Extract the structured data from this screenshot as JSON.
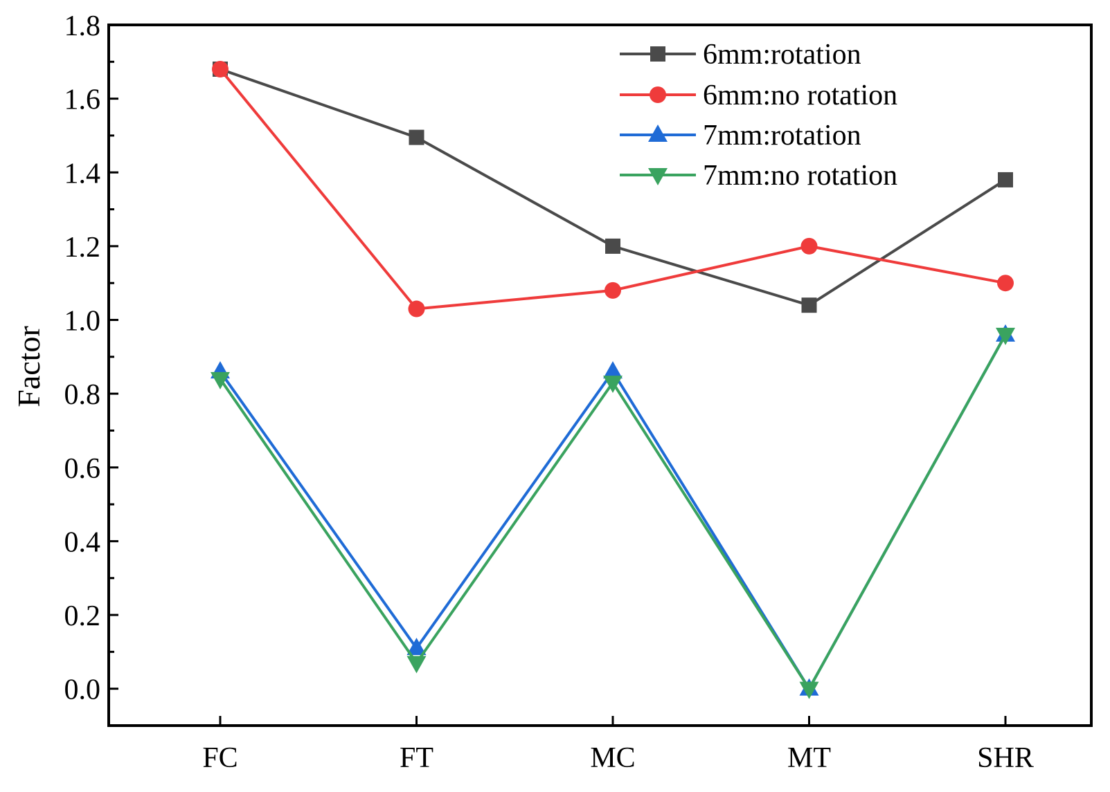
{
  "chart_data": {
    "type": "line",
    "title": "",
    "xlabel": "",
    "ylabel": "Factor",
    "categories": [
      "FC",
      "FT",
      "MC",
      "MT",
      "SHR"
    ],
    "ylim": [
      -0.1,
      1.8
    ],
    "yticks": [
      "0.0",
      "0.2",
      "0.4",
      "0.6",
      "0.8",
      "1.0",
      "1.2",
      "1.4",
      "1.6",
      "1.8"
    ],
    "grid": false,
    "legend_position": "top-right",
    "series": [
      {
        "name": "6mm:rotation",
        "color": "#4a4a4a",
        "marker": "square",
        "values": [
          1.68,
          1.495,
          1.2,
          1.04,
          1.38
        ]
      },
      {
        "name": "6mm:no rotation",
        "color": "#ef3b3b",
        "marker": "circle",
        "values": [
          1.68,
          1.03,
          1.08,
          1.2,
          1.1
        ]
      },
      {
        "name": "7mm:rotation",
        "color": "#1f6bd6",
        "marker": "triangle-up",
        "values": [
          0.86,
          0.11,
          0.86,
          0.0,
          0.96
        ]
      },
      {
        "name": "7mm:no rotation",
        "color": "#3aa35f",
        "marker": "triangle-down",
        "values": [
          0.84,
          0.07,
          0.83,
          0.0,
          0.96
        ]
      }
    ]
  }
}
